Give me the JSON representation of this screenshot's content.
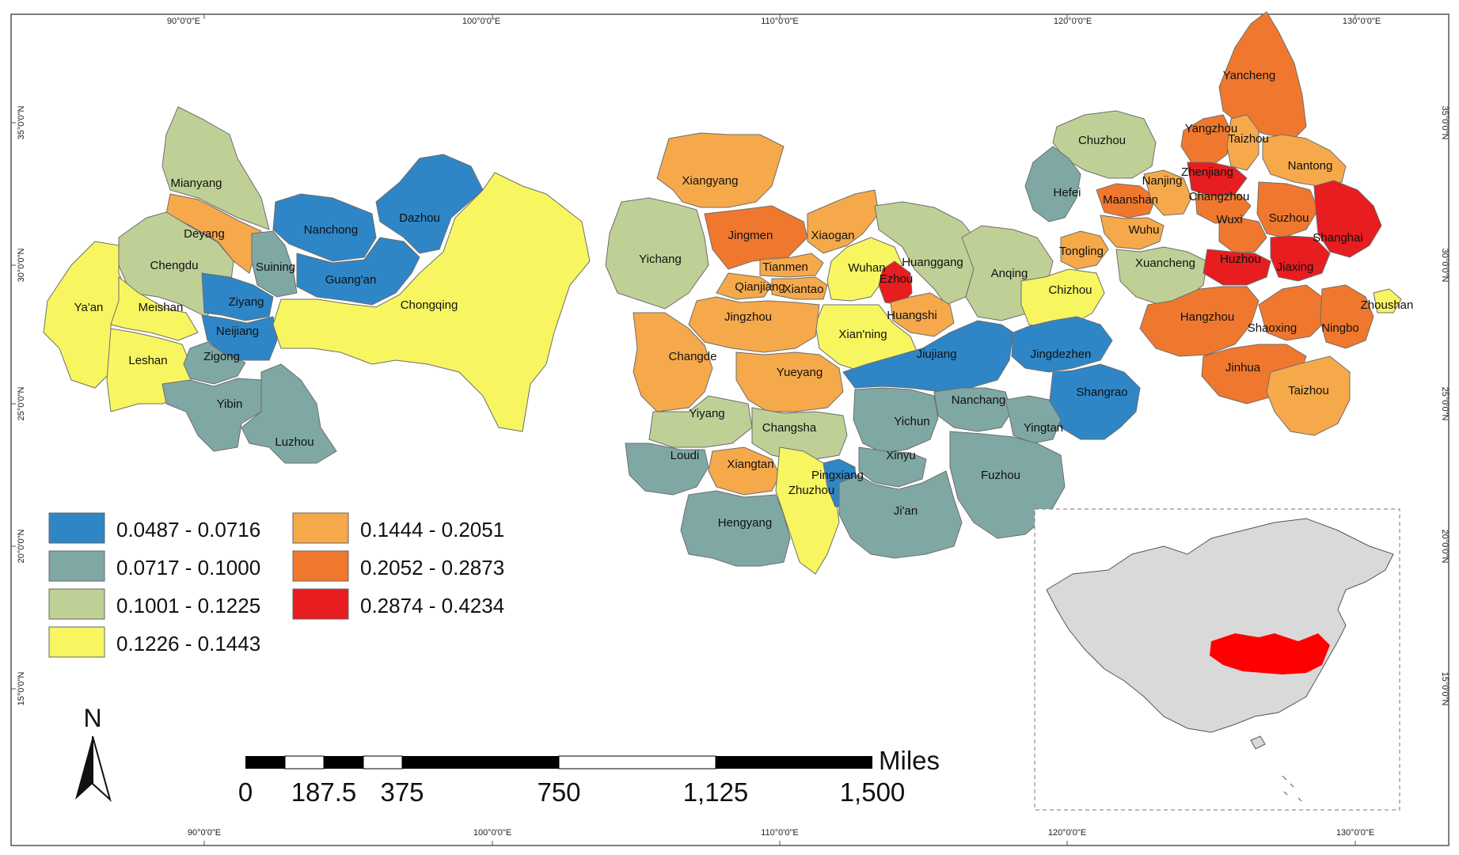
{
  "graticule": {
    "longitudes": [
      "90°0'0\"E",
      "100°0'0\"E",
      "110°0'0\"E",
      "120°0'0\"E",
      "130°0'0\"E"
    ],
    "latitudes": [
      "35°0'0\"N",
      "30°0'0\"N",
      "25°0'0\"N",
      "20°0'0\"N",
      "15°0'0\"N"
    ]
  },
  "legend": {
    "classes": [
      {
        "range": "0.0487 - 0.0716",
        "color": "#2e86c6"
      },
      {
        "range": "0.0717 - 0.1000",
        "color": "#7fa8a4"
      },
      {
        "range": "0.1001 - 0.1225",
        "color": "#bfd096"
      },
      {
        "range": "0.1226 - 0.1443",
        "color": "#f8f660"
      },
      {
        "range": "0.1444 - 0.2051",
        "color": "#f6a94a"
      },
      {
        "range": "0.2052 - 0.2873",
        "color": "#f0782e"
      },
      {
        "range": "0.2874 - 0.4234",
        "color": "#e71d1f"
      }
    ]
  },
  "north_arrow": {
    "label": "N"
  },
  "scale_bar": {
    "unit": "Miles",
    "ticks": [
      "0",
      "187.5",
      "375",
      "750",
      "1,125",
      "1,500"
    ]
  },
  "cities": [
    {
      "name": "Mianyang",
      "class": 2
    },
    {
      "name": "Deyang",
      "class": 4
    },
    {
      "name": "Chengdu",
      "class": 2
    },
    {
      "name": "Ya'an",
      "class": 3
    },
    {
      "name": "Meishan",
      "class": 3
    },
    {
      "name": "Leshan",
      "class": 3
    },
    {
      "name": "Ziyang",
      "class": 0
    },
    {
      "name": "Neijiang",
      "class": 0
    },
    {
      "name": "Zigong",
      "class": 1
    },
    {
      "name": "Yibin",
      "class": 1
    },
    {
      "name": "Luzhou",
      "class": 1
    },
    {
      "name": "Suining",
      "class": 1
    },
    {
      "name": "Nanchong",
      "class": 0
    },
    {
      "name": "Dazhou",
      "class": 0
    },
    {
      "name": "Guang'an",
      "class": 0
    },
    {
      "name": "Chongqing",
      "class": 3
    },
    {
      "name": "Xiangyang",
      "class": 4
    },
    {
      "name": "Yichang",
      "class": 2
    },
    {
      "name": "Jingmen",
      "class": 5
    },
    {
      "name": "Xiaogan",
      "class": 4
    },
    {
      "name": "Tianmen",
      "class": 4
    },
    {
      "name": "Qianjiang",
      "class": 4
    },
    {
      "name": "Xiantao",
      "class": 4
    },
    {
      "name": "Wuhan",
      "class": 3
    },
    {
      "name": "Ezhou",
      "class": 6
    },
    {
      "name": "Huanggang",
      "class": 2
    },
    {
      "name": "Huangshi",
      "class": 4
    },
    {
      "name": "Xian'ning",
      "class": 3
    },
    {
      "name": "Jingzhou",
      "class": 4
    },
    {
      "name": "Changde",
      "class": 4
    },
    {
      "name": "Yueyang",
      "class": 4
    },
    {
      "name": "Yiyang",
      "class": 2
    },
    {
      "name": "Changsha",
      "class": 2
    },
    {
      "name": "Loudi",
      "class": 1
    },
    {
      "name": "Xiangtan",
      "class": 4
    },
    {
      "name": "Zhuzhou",
      "class": 3
    },
    {
      "name": "Pingxiang",
      "class": 0
    },
    {
      "name": "Hengyang",
      "class": 1
    },
    {
      "name": "Anqing",
      "class": 2
    },
    {
      "name": "Chizhou",
      "class": 3
    },
    {
      "name": "Jiujiang",
      "class": 0
    },
    {
      "name": "Jingdezhen",
      "class": 0
    },
    {
      "name": "Shangrao",
      "class": 0
    },
    {
      "name": "Nanchang",
      "class": 1
    },
    {
      "name": "Yichun",
      "class": 1
    },
    {
      "name": "Yingtan",
      "class": 1
    },
    {
      "name": "Xinyu",
      "class": 1
    },
    {
      "name": "Fuzhou",
      "class": 1
    },
    {
      "name": "Ji'an",
      "class": 1
    },
    {
      "name": "Chuzhou",
      "class": 2
    },
    {
      "name": "Hefei",
      "class": 1
    },
    {
      "name": "Maanshan",
      "class": 5
    },
    {
      "name": "Nanjing",
      "class": 4
    },
    {
      "name": "Wuhu",
      "class": 4
    },
    {
      "name": "Tongling",
      "class": 4
    },
    {
      "name": "Xuancheng",
      "class": 2
    },
    {
      "name": "Yancheng",
      "class": 5
    },
    {
      "name": "Yangzhou",
      "class": 5
    },
    {
      "name": "Taizhou",
      "class": 4
    },
    {
      "name": "Nantong",
      "class": 4
    },
    {
      "name": "Zhenjiang",
      "class": 6
    },
    {
      "name": "Changzhou",
      "class": 5
    },
    {
      "name": "Wuxi",
      "class": 5
    },
    {
      "name": "Suzhou",
      "class": 5
    },
    {
      "name": "Shanghai",
      "class": 6
    },
    {
      "name": "Huzhou",
      "class": 6
    },
    {
      "name": "Jiaxing",
      "class": 6
    },
    {
      "name": "Hangzhou",
      "class": 5
    },
    {
      "name": "Shaoxing",
      "class": 5
    },
    {
      "name": "Ningbo",
      "class": 5
    },
    {
      "name": "Zhoushan",
      "class": 3
    },
    {
      "name": "Jinhua",
      "class": 5
    },
    {
      "name": "Taizhou",
      "class": 4
    }
  ],
  "inset": {
    "base_color": "#d9d9d9",
    "highlight_color": "#ff0000"
  }
}
